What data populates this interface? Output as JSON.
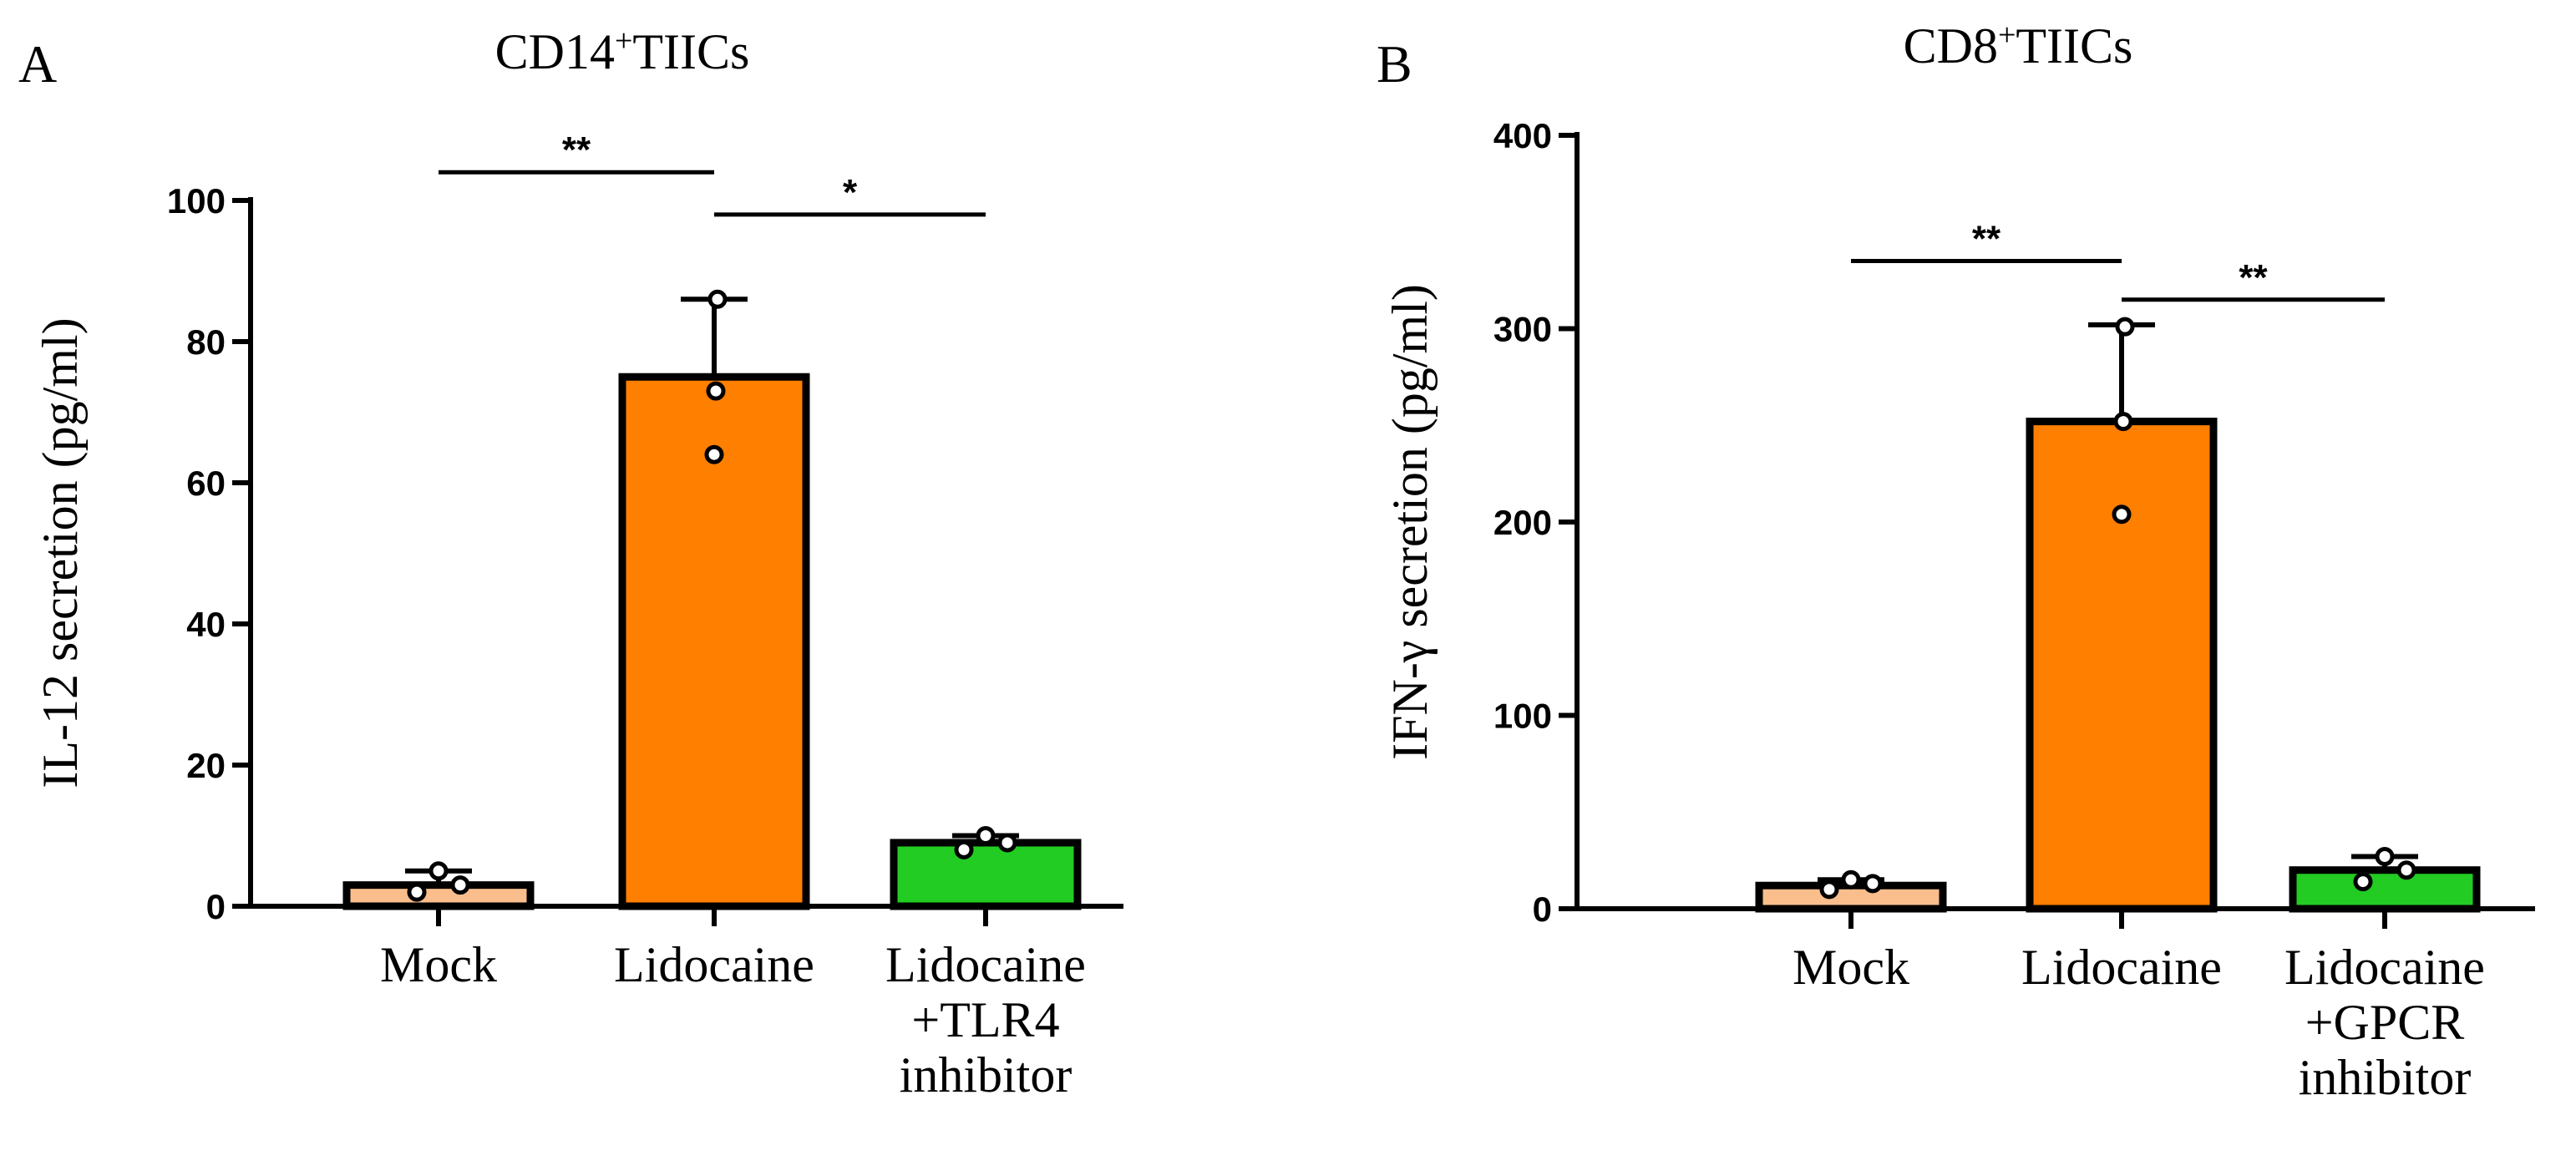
{
  "chart_data": [
    {
      "panel": "A",
      "type": "bar",
      "title_main": "CD14",
      "title_sup": "+",
      "title_rest": "TIICs",
      "ylabel": "IL-12 secretion (pg/ml)",
      "ylim": [
        0,
        100
      ],
      "yticks": [
        0,
        20,
        40,
        60,
        80,
        100
      ],
      "categories": [
        {
          "lines": [
            "Mock"
          ]
        },
        {
          "lines": [
            "Lidocaine"
          ]
        },
        {
          "lines": [
            "Lidocaine",
            "+TLR4",
            "inhibitor"
          ]
        }
      ],
      "values": [
        3,
        75,
        9
      ],
      "errors": [
        2,
        11,
        1
      ],
      "points": [
        [
          2,
          5,
          3
        ],
        [
          64,
          73,
          86
        ],
        [
          8,
          10,
          9
        ]
      ],
      "colors": [
        "#F9BE8C",
        "#FF7F00",
        "#22CC22"
      ],
      "significance": [
        {
          "from": 0,
          "to": 1,
          "label": "**",
          "y": 104
        },
        {
          "from": 1,
          "to": 2,
          "label": "*",
          "y": 98
        }
      ]
    },
    {
      "panel": "B",
      "type": "bar",
      "title_main": "CD8",
      "title_sup": "+",
      "title_rest": "TIICs",
      "ylabel": "IFN-γ  secretion (pg/ml)",
      "ylim": [
        0,
        400
      ],
      "yticks": [
        0,
        100,
        200,
        300,
        400
      ],
      "categories": [
        {
          "lines": [
            "Mock"
          ]
        },
        {
          "lines": [
            "Lidocaine"
          ]
        },
        {
          "lines": [
            "Lidocaine",
            "+GPCR",
            "inhibitor"
          ]
        }
      ],
      "values": [
        12,
        252,
        20
      ],
      "errors": [
        3,
        50,
        7
      ],
      "points": [
        [
          10,
          15,
          13
        ],
        [
          204,
          252,
          301
        ],
        [
          14,
          27,
          20
        ]
      ],
      "colors": [
        "#F9BE8C",
        "#FF7F00",
        "#22CC22"
      ],
      "significance": [
        {
          "from": 0,
          "to": 1,
          "label": "**",
          "y": 335
        },
        {
          "from": 1,
          "to": 2,
          "label": "**",
          "y": 315
        }
      ]
    }
  ]
}
